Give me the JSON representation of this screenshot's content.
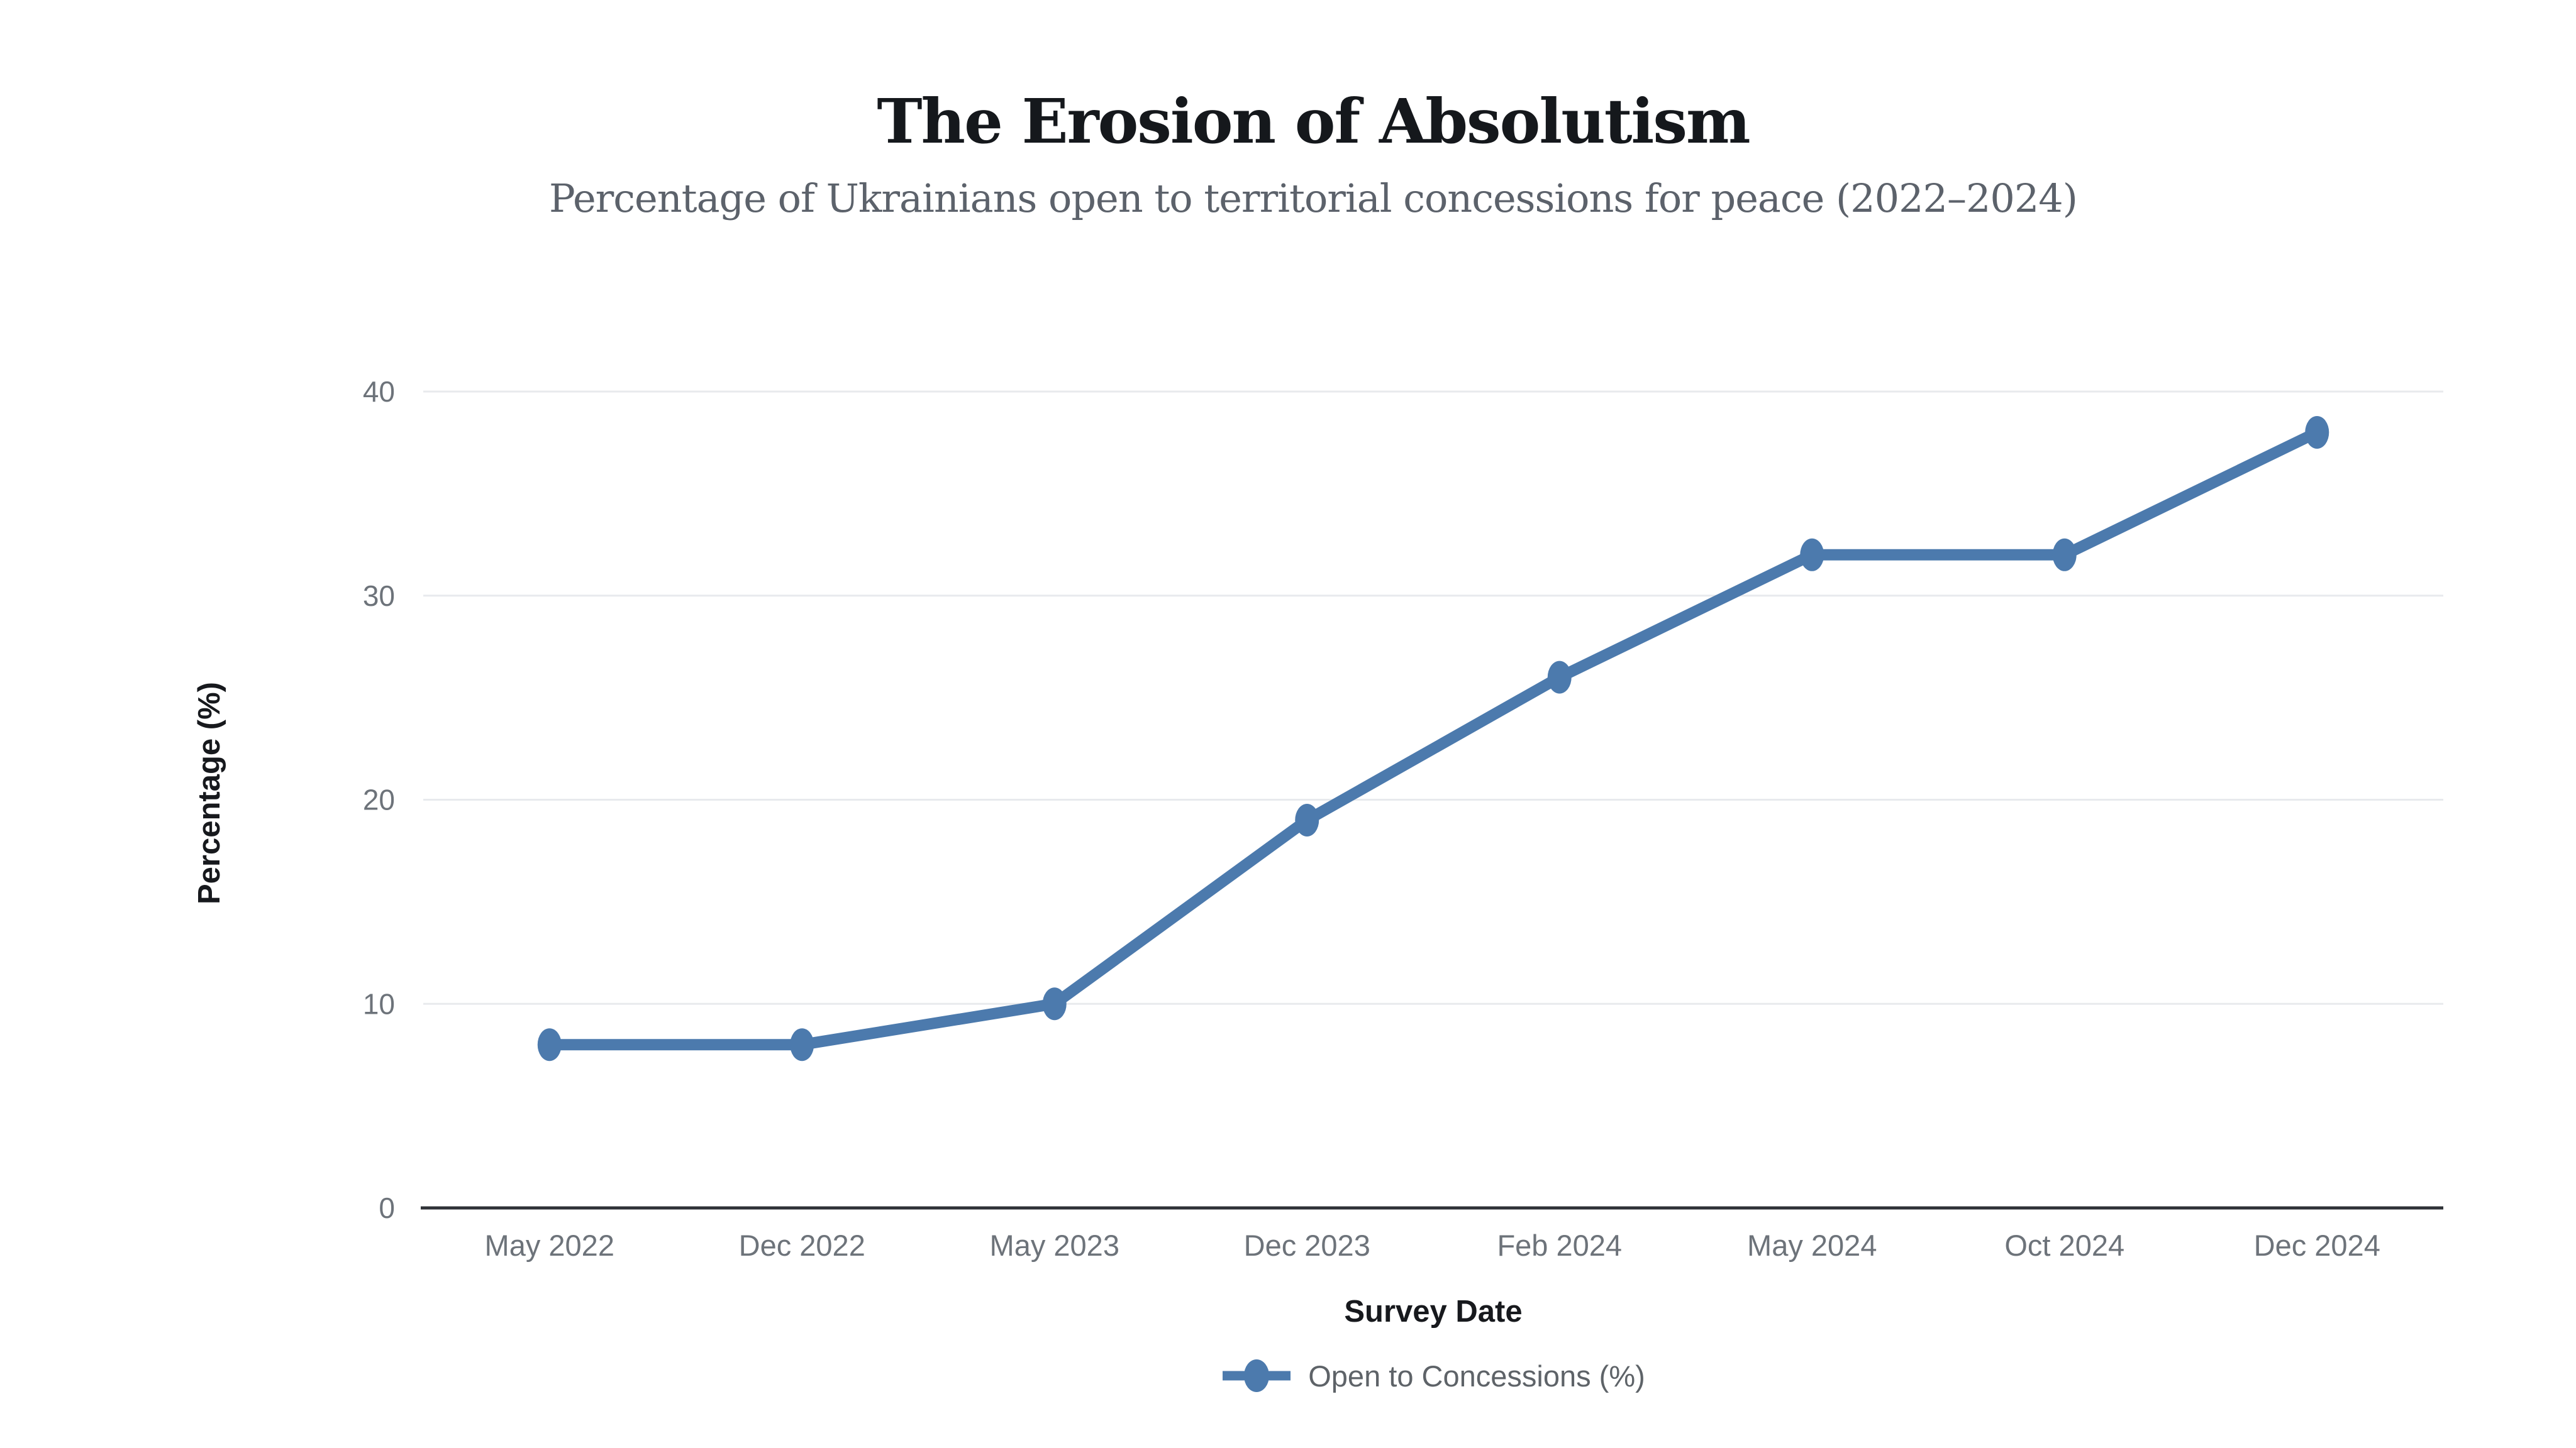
{
  "chart_data": {
    "type": "line",
    "title": "The Erosion of Absolutism",
    "subtitle": "Percentage of Ukrainians open to territorial concessions for peace (2022–2024)",
    "categories": [
      "May 2022",
      "Dec 2022",
      "May 2023",
      "Dec 2023",
      "Feb 2024",
      "May 2024",
      "Oct 2024",
      "Dec 2024"
    ],
    "series": [
      {
        "name": "Open to Concessions (%)",
        "color": "#4c7aad",
        "values": [
          8,
          8,
          10,
          19,
          26,
          32,
          32,
          38
        ]
      }
    ],
    "xlabel": "Survey Date",
    "ylabel": "Percentage (%)",
    "ylim": [
      0,
      41.5
    ],
    "yticks": [
      0,
      10,
      20,
      30,
      40
    ],
    "grid": true,
    "legend_position": "bottom",
    "colors": {
      "background": "#ffffff",
      "series_line": "#4c7aad",
      "grid_line": "#e8eaed",
      "axis_line": "#2f3237",
      "tick_label": "#6d737a",
      "axis_title": "#17191d",
      "title": "#15181c",
      "subtitle": "#5c626b",
      "legend_text": "#5e6368"
    }
  }
}
